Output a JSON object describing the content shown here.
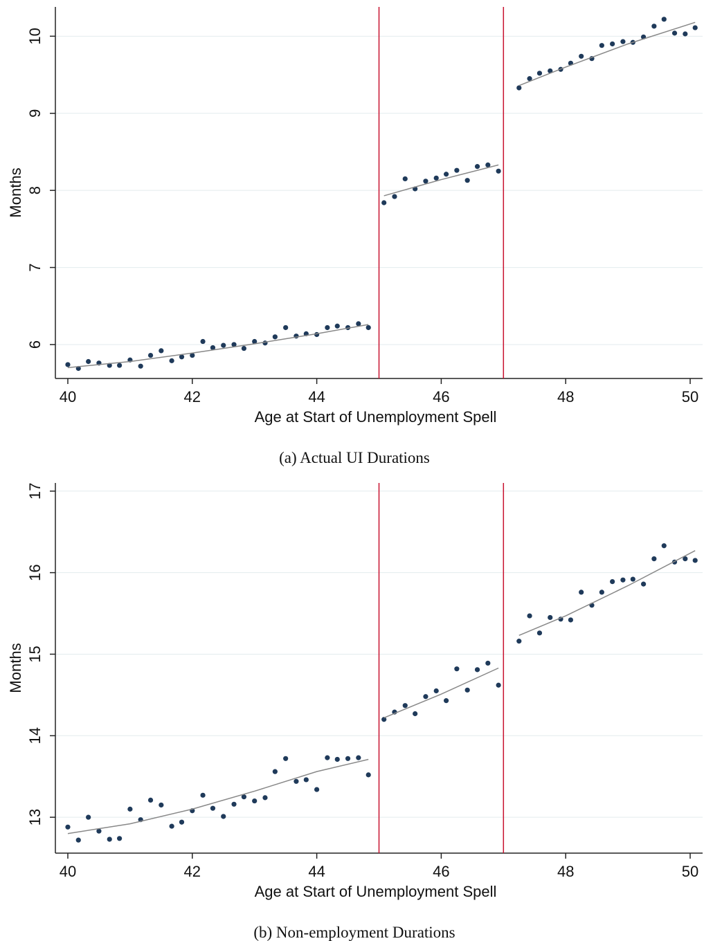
{
  "chart_data": [
    {
      "type": "scatter",
      "caption": "(a) Actual UI Durations",
      "x_label": "Age at Start of Unemployment Spell",
      "y_label": "Months",
      "xlim": [
        39.8,
        50.2
      ],
      "ylim": [
        5.56,
        10.38
      ],
      "xticks": [
        40,
        42,
        44,
        46,
        48,
        50
      ],
      "yticks": [
        6,
        7,
        8,
        9,
        10
      ],
      "grid": true,
      "vlines": [
        45,
        47
      ],
      "vline_color": "#c8102e",
      "series": [
        {
          "mark": "point",
          "color": "#1f3a5a",
          "x": [
            40,
            40.17,
            40.33,
            40.5,
            40.67,
            40.83,
            41,
            41.17,
            41.33,
            41.5,
            41.67,
            41.83,
            42,
            42.17,
            42.33,
            42.5,
            42.67,
            42.83,
            43,
            43.17,
            43.33,
            43.5,
            43.67,
            43.83,
            44,
            44.17,
            44.33,
            44.5,
            44.67,
            44.83
          ],
          "values": [
            5.74,
            5.69,
            5.78,
            5.76,
            5.73,
            5.73,
            5.8,
            5.72,
            5.86,
            5.92,
            5.79,
            5.84,
            5.86,
            6.04,
            5.96,
            5.99,
            6.0,
            5.95,
            6.04,
            6.02,
            6.1,
            6.22,
            6.11,
            6.14,
            6.13,
            6.22,
            6.24,
            6.22,
            6.27,
            6.22
          ]
        },
        {
          "mark": "point",
          "color": "#1f3a5a",
          "x": [
            45.08,
            45.25,
            45.42,
            45.58,
            45.75,
            45.92,
            46.08,
            46.25,
            46.42,
            46.58,
            46.75,
            46.92
          ],
          "values": [
            7.84,
            7.92,
            8.15,
            8.02,
            8.12,
            8.16,
            8.21,
            8.26,
            8.13,
            8.31,
            8.33,
            8.25
          ]
        },
        {
          "mark": "point",
          "color": "#1f3a5a",
          "x": [
            47.25,
            47.42,
            47.58,
            47.75,
            47.92,
            48.08,
            48.25,
            48.42,
            48.58,
            48.75,
            48.92,
            49.08,
            49.25,
            49.42,
            49.58,
            49.75,
            49.92,
            50.08
          ],
          "values": [
            9.33,
            9.45,
            9.52,
            9.55,
            9.57,
            9.65,
            9.74,
            9.71,
            9.88,
            9.9,
            9.93,
            9.92,
            9.99,
            10.13,
            10.22,
            10.04,
            10.03,
            10.11
          ]
        },
        {
          "mark": "line",
          "color": "#888888",
          "x": [
            40,
            41,
            42,
            43,
            44,
            44.83
          ],
          "values": [
            5.7,
            5.78,
            5.89,
            6.01,
            6.14,
            6.26
          ]
        },
        {
          "mark": "line",
          "color": "#888888",
          "x": [
            45.08,
            46,
            46.92
          ],
          "values": [
            7.93,
            8.14,
            8.33
          ]
        },
        {
          "mark": "line",
          "color": "#888888",
          "x": [
            47.25,
            48,
            49,
            50.08
          ],
          "values": [
            9.36,
            9.6,
            9.9,
            10.18
          ]
        }
      ]
    },
    {
      "type": "scatter",
      "caption": "(b) Non-employment Durations",
      "x_label": "Age at Start of Unemployment Spell",
      "y_label": "Months",
      "xlim": [
        39.8,
        50.2
      ],
      "ylim": [
        12.56,
        17.1
      ],
      "xticks": [
        40,
        42,
        44,
        46,
        48,
        50
      ],
      "yticks": [
        13,
        14,
        15,
        16,
        17
      ],
      "grid": true,
      "vlines": [
        45,
        47
      ],
      "vline_color": "#c8102e",
      "series": [
        {
          "mark": "point",
          "color": "#1f3a5a",
          "x": [
            40,
            40.17,
            40.33,
            40.5,
            40.67,
            40.83,
            41,
            41.17,
            41.33,
            41.5,
            41.67,
            41.83,
            42,
            42.17,
            42.33,
            42.5,
            42.67,
            42.83,
            43,
            43.17,
            43.33,
            43.5,
            43.67,
            43.83,
            44,
            44.17,
            44.33,
            44.5,
            44.67,
            44.83
          ],
          "values": [
            12.88,
            12.72,
            13.0,
            12.83,
            12.73,
            12.74,
            13.1,
            12.97,
            13.21,
            13.15,
            12.89,
            12.94,
            13.08,
            13.27,
            13.11,
            13.01,
            13.16,
            13.25,
            13.2,
            13.24,
            13.56,
            13.72,
            13.44,
            13.46,
            13.34,
            13.73,
            13.71,
            13.72,
            13.73,
            13.52
          ]
        },
        {
          "mark": "point",
          "color": "#1f3a5a",
          "x": [
            45.08,
            45.25,
            45.42,
            45.58,
            45.75,
            45.92,
            46.08,
            46.25,
            46.42,
            46.58,
            46.75,
            46.92
          ],
          "values": [
            14.2,
            14.29,
            14.37,
            14.27,
            14.48,
            14.55,
            14.43,
            14.82,
            14.56,
            14.81,
            14.89,
            14.62
          ]
        },
        {
          "mark": "point",
          "color": "#1f3a5a",
          "x": [
            47.25,
            47.42,
            47.58,
            47.75,
            47.92,
            48.08,
            48.25,
            48.42,
            48.58,
            48.75,
            48.92,
            49.08,
            49.25,
            49.42,
            49.58,
            49.75,
            49.92,
            50.08
          ],
          "values": [
            15.16,
            15.47,
            15.26,
            15.45,
            15.43,
            15.42,
            15.76,
            15.6,
            15.76,
            15.89,
            15.91,
            15.92,
            15.86,
            16.17,
            16.33,
            16.13,
            16.17,
            16.15
          ]
        },
        {
          "mark": "line",
          "color": "#888888",
          "x": [
            40,
            41,
            42,
            43,
            44,
            44.83
          ],
          "values": [
            12.8,
            12.92,
            13.1,
            13.32,
            13.56,
            13.71
          ]
        },
        {
          "mark": "line",
          "color": "#888888",
          "x": [
            45.08,
            46,
            46.92
          ],
          "values": [
            14.22,
            14.51,
            14.83
          ]
        },
        {
          "mark": "line",
          "color": "#888888",
          "x": [
            47.25,
            48,
            49,
            50.08
          ],
          "values": [
            15.23,
            15.47,
            15.84,
            16.27
          ]
        }
      ]
    }
  ]
}
